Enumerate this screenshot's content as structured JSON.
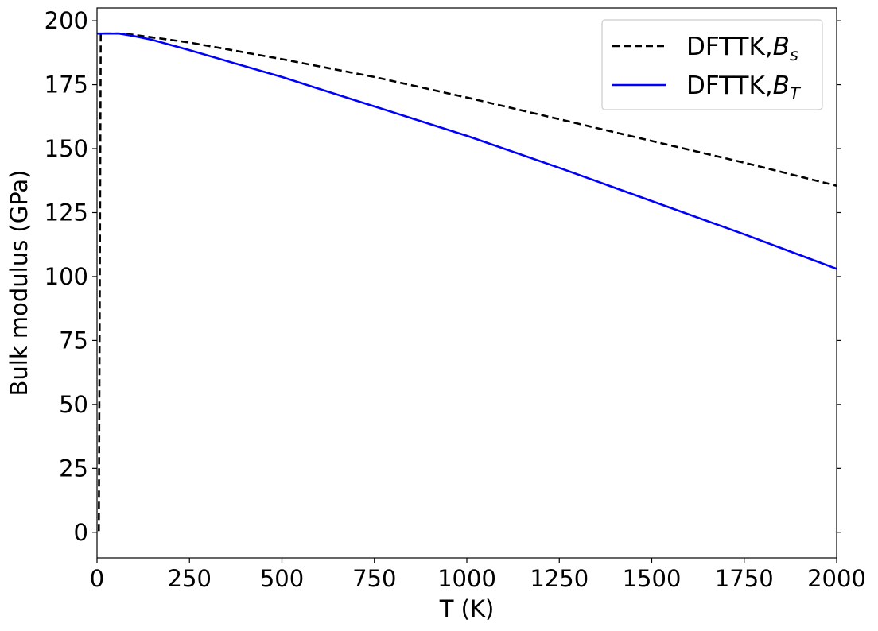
{
  "chart_data": {
    "type": "line",
    "xlabel": "T (K)",
    "ylabel": "Bulk modulus (GPa)",
    "xlim": [
      0,
      2000
    ],
    "ylim": [
      -10,
      205
    ],
    "xticks": [
      "0",
      "250",
      "500",
      "750",
      "1000",
      "1250",
      "1500",
      "1750",
      "2000"
    ],
    "yticks": [
      "0",
      "25",
      "50",
      "75",
      "100",
      "125",
      "150",
      "175",
      "200"
    ],
    "grid": false,
    "legend_position": "top-right",
    "series": [
      {
        "name": "DFTTK,B_s",
        "label_main": "DFTTK,",
        "label_symbol": "B",
        "label_sub": "s",
        "color": "#000000",
        "style": "dashed",
        "x": [
          5,
          10,
          60,
          100,
          250,
          500,
          750,
          1000,
          1250,
          1500,
          1750,
          2000
        ],
        "y": [
          0.5,
          195,
          195,
          194.5,
          191.5,
          185,
          178,
          170,
          161.5,
          153,
          144.5,
          135.5
        ]
      },
      {
        "name": "DFTTK,B_T",
        "label_main": "DFTTK,",
        "label_symbol": "B",
        "label_sub": "T",
        "color": "#0000ff",
        "style": "solid",
        "x": [
          0,
          60,
          100,
          150,
          250,
          500,
          750,
          1000,
          1250,
          1500,
          1750,
          2000
        ],
        "y": [
          195,
          195,
          194,
          192.5,
          188.5,
          178,
          166.5,
          155,
          142.5,
          129.5,
          116.5,
          103
        ]
      }
    ]
  }
}
